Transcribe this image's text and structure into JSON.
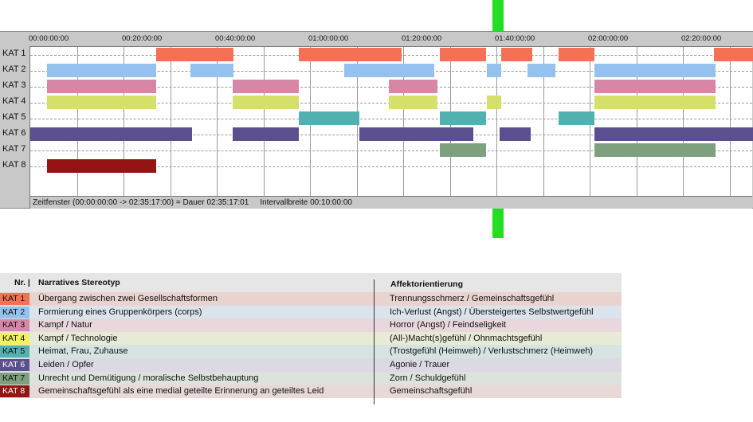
{
  "colors": {
    "kat1": "#f47156",
    "kat2": "#94c1ee",
    "kat3": "#d687a7",
    "kat4": "#d4e06a",
    "kat5": "#51b1b1",
    "kat6": "#5c4f8e",
    "kat7": "#7ea07e",
    "kat8": "#941414",
    "playhead": "#22dd22"
  },
  "timeline": {
    "tick_labels": [
      "00:00:00:00",
      "00:20:00:00",
      "00:40:00:00",
      "01:00:00:00",
      "01:20:00:00",
      "01:40:00:00",
      "02:00:00:00",
      "02:20:00:00"
    ],
    "status": {
      "window": "Zeitfenster (00:00:00:00 -> 02:35:17:00) = Dauer 02:35:17:01",
      "interval": "Intervallbreite 00:10:00:00"
    }
  },
  "chart_data": {
    "type": "timeline",
    "time_unit": "hh:mm:ss",
    "x_range": [
      "00:00:00",
      "02:35:17"
    ],
    "gridline_interval": "00:10:00",
    "tracks": [
      {
        "label": "KAT 1",
        "color": "#f47156",
        "segments": [
          [
            "00:27:00",
            "00:43:40"
          ],
          [
            "00:57:40",
            "01:19:40"
          ],
          [
            "01:27:50",
            "01:37:50"
          ],
          [
            "01:41:00",
            "01:47:40"
          ],
          [
            "01:53:20",
            "02:01:00"
          ],
          [
            "02:26:40",
            "02:35:17"
          ]
        ]
      },
      {
        "label": "KAT 2",
        "color": "#94c1ee",
        "segments": [
          [
            "00:03:40",
            "00:27:00"
          ],
          [
            "00:34:20",
            "00:43:40"
          ],
          [
            "01:07:20",
            "01:26:40"
          ],
          [
            "01:38:00",
            "01:41:00"
          ],
          [
            "01:46:40",
            "01:52:40"
          ],
          [
            "02:01:00",
            "02:27:00"
          ]
        ]
      },
      {
        "label": "KAT 3",
        "color": "#d687a7",
        "segments": [
          [
            "00:03:40",
            "00:27:00"
          ],
          [
            "00:43:20",
            "00:57:40"
          ],
          [
            "01:17:00",
            "01:27:20"
          ],
          [
            "02:01:00",
            "02:27:00"
          ]
        ]
      },
      {
        "label": "KAT 4",
        "color": "#d4e06a",
        "segments": [
          [
            "00:03:40",
            "00:27:00"
          ],
          [
            "00:43:20",
            "00:57:40"
          ],
          [
            "01:17:00",
            "01:27:20"
          ],
          [
            "01:38:00",
            "01:41:00"
          ],
          [
            "02:01:00",
            "02:27:00"
          ]
        ]
      },
      {
        "label": "KAT 5",
        "color": "#51b1b1",
        "segments": [
          [
            "00:57:40",
            "01:10:40"
          ],
          [
            "01:27:50",
            "01:37:50"
          ],
          [
            "01:53:20",
            "02:01:00"
          ]
        ]
      },
      {
        "label": "KAT 6",
        "color": "#5c4f8e",
        "segments": [
          [
            "00:00:00",
            "00:34:40"
          ],
          [
            "00:43:20",
            "00:57:40"
          ],
          [
            "01:10:40",
            "01:35:00"
          ],
          [
            "01:40:40",
            "01:47:20"
          ],
          [
            "02:01:00",
            "02:35:17"
          ]
        ]
      },
      {
        "label": "KAT 7",
        "color": "#7ea07e",
        "segments": [
          [
            "01:27:50",
            "01:37:50"
          ],
          [
            "02:01:00",
            "02:27:00"
          ]
        ]
      },
      {
        "label": "KAT 8",
        "color": "#941414",
        "segments": [
          [
            "00:03:40",
            "00:27:00"
          ]
        ]
      }
    ]
  },
  "legend": {
    "header_nr": "Nr. |",
    "header_stereotype": "Narratives Stereotyp",
    "header_affect": "Affektorientierung",
    "rows": [
      {
        "kat": "KAT 1",
        "stereotype": "Übergang zwischen zwei Gesellschaftsformen",
        "affect": "Trennungsschmerz / Gemeinschaftsgefühl",
        "bg": "#e9d3ce",
        "badge": "#f47156"
      },
      {
        "kat": "KAT 2",
        "stereotype": "Formierung eines Gruppenkörpers (corps)",
        "affect": "Ich-Verlust (Angst) / Übersteigertes Selbstwertgefühl",
        "bg": "#dbe3ec",
        "badge": "#94c1ee"
      },
      {
        "kat": "KAT 3",
        "stereotype": "Kampf / Natur",
        "affect": "Horror (Angst) / Feindseligkeit",
        "bg": "#e8d8de",
        "badge": "#d687a7"
      },
      {
        "kat": "KAT 4",
        "stereotype": "Kampf / Technologie",
        "affect": "(All-)Macht(s)gefühl / Ohnmachtsgefühl",
        "bg": "#e8ead5",
        "badge": "#f0f062"
      },
      {
        "kat": "KAT 5",
        "stereotype": "Heimat, Frau, Zuhause",
        "affect": "(Trostgefühl (Heimweh) / Verlustschmerz (Heimweh)",
        "bg": "#d5e4e3",
        "badge": "#51b1b1"
      },
      {
        "kat": "KAT 6",
        "stereotype": "Leiden / Opfer",
        "affect": "Agonie / Trauer",
        "bg": "#dcd9e3",
        "badge": "#5c4f8e"
      },
      {
        "kat": "KAT 7",
        "stereotype": "Unrecht und Demütigung / moralische Selbstbehauptung",
        "affect": "Zorn / Schuldgefühl",
        "bg": "#dce3dc",
        "badge": "#7ea07e"
      },
      {
        "kat": "KAT 8",
        "stereotype": "Gemeinschaftsgefühl als eine medial geteilte Erinnerung an geteiltes Leid",
        "affect": "Gemeinschaftsgefühl",
        "bg": "#e8d9d9",
        "badge": "#941414"
      }
    ]
  }
}
